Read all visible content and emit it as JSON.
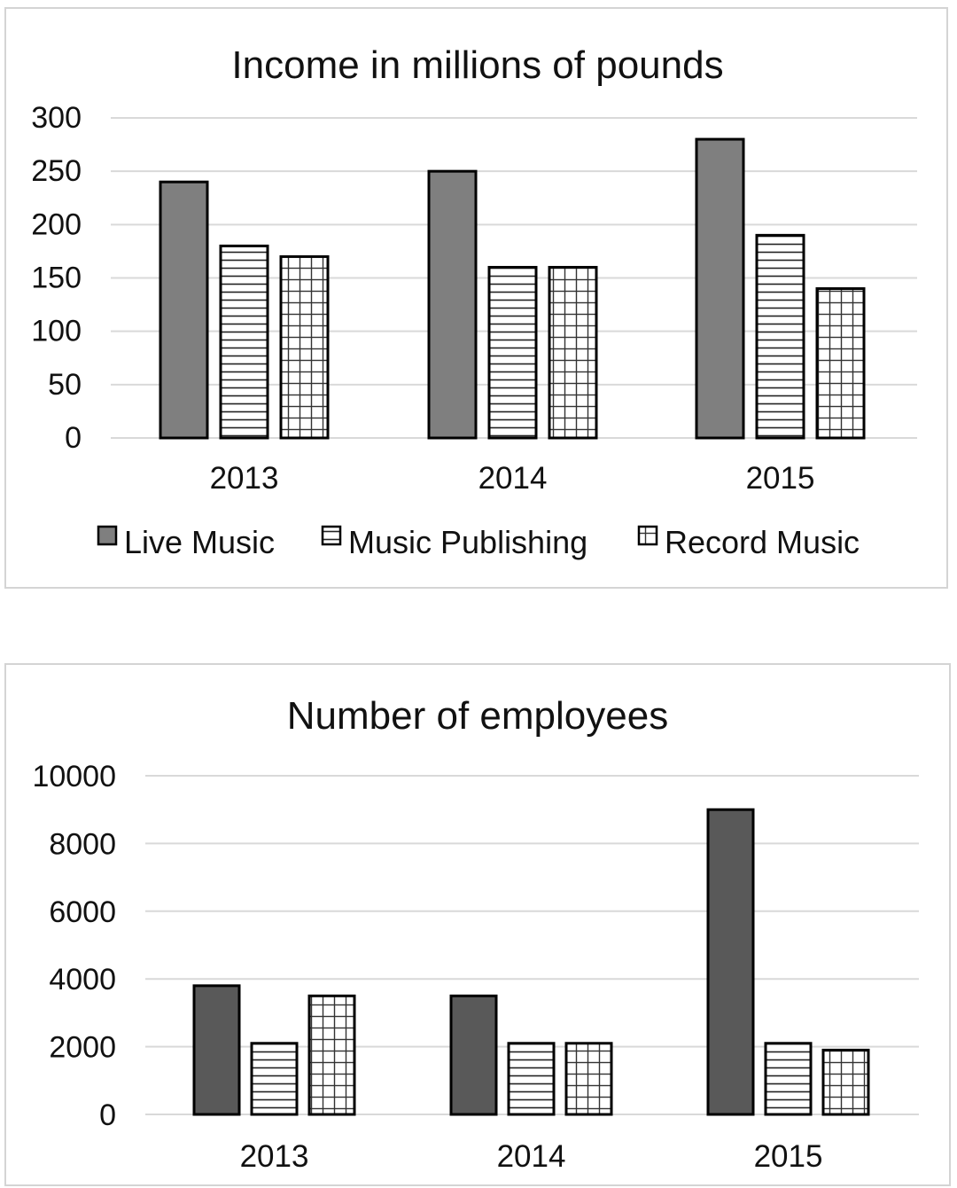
{
  "chart_data": [
    {
      "type": "bar",
      "title": "Income in millions of pounds",
      "categories": [
        "2013",
        "2014",
        "2015"
      ],
      "series": [
        {
          "name": "Live Music",
          "values": [
            240,
            250,
            280
          ],
          "pattern": "solid"
        },
        {
          "name": "Music Publishing",
          "values": [
            180,
            160,
            190
          ],
          "pattern": "horizontal-lines"
        },
        {
          "name": "Record Music",
          "values": [
            170,
            160,
            140
          ],
          "pattern": "grid"
        }
      ],
      "ylim": [
        0,
        300
      ],
      "yticks": [
        "0",
        "50",
        "100",
        "150",
        "200",
        "250",
        "300"
      ],
      "grid": true,
      "legend": "bottom",
      "colors": {
        "solid": "#7f7f7f",
        "outline": "#000000",
        "gridline": "#d9d9d9"
      }
    },
    {
      "type": "bar",
      "title": "Number of employees",
      "categories": [
        "2013",
        "2014",
        "2015"
      ],
      "series": [
        {
          "values": [
            3800,
            3500,
            9000
          ],
          "pattern": "solid"
        },
        {
          "values": [
            2100,
            2100,
            2100
          ],
          "pattern": "horizontal-lines"
        },
        {
          "values": [
            3500,
            2100,
            1900
          ],
          "pattern": "grid"
        }
      ],
      "ylim": [
        0,
        10000
      ],
      "yticks": [
        "0",
        "2000",
        "4000",
        "6000",
        "8000",
        "10000"
      ],
      "grid": true,
      "legend": "none",
      "colors": {
        "solid": "#595959",
        "outline": "#000000",
        "gridline": "#d9d9d9"
      }
    }
  ]
}
